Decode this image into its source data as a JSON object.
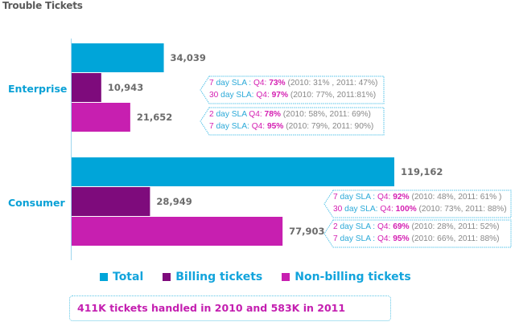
{
  "chart_data": {
    "type": "bar",
    "orientation": "horizontal",
    "title": "Trouble Tickets",
    "xlabel": "",
    "ylabel": "",
    "xlim": [
      0,
      119162
    ],
    "grid": false,
    "categories": [
      "Enterprise",
      "Consumer"
    ],
    "series": [
      {
        "name": "Total",
        "color": "#00a5d9",
        "values": [
          34039,
          119162
        ],
        "labels": [
          "34,039",
          "119,162"
        ]
      },
      {
        "name": "Billing tickets",
        "color": "#7e0b7c",
        "values": [
          10943,
          28949
        ],
        "labels": [
          "10,943",
          "28,949"
        ]
      },
      {
        "name": "Non-billing tickets",
        "color": "#c71fb0",
        "values": [
          21652,
          77903
        ],
        "labels": [
          "21,652",
          "77,903"
        ]
      }
    ],
    "legend": {
      "placement": "bottom"
    },
    "annotations": {
      "enterprise_billing": [
        {
          "sla": "7",
          "sla_rest": "day SLA :",
          "q4_label": "Q4:",
          "q4": "73%",
          "history": "(2010: 31% , 2011: 47%)"
        },
        {
          "sla": "30",
          "sla_rest": "day SLA:",
          "q4_label": "Q4:",
          "q4": "97%",
          "history": "(2010: 77%, 2011:81%)"
        }
      ],
      "enterprise_nonbilling": [
        {
          "sla": "2",
          "sla_rest": "day SLA",
          "q4_label": "Q4:",
          "q4": "78%",
          "history": "(2010: 58%, 2011: 69%)"
        },
        {
          "sla": "7",
          "sla_rest": "day SLA:",
          "q4_label": "Q4:",
          "q4": "95%",
          "history": "(2010: 79%, 2011:  90%)"
        }
      ],
      "consumer_billing": [
        {
          "sla": "7",
          "sla_rest": "day SLA :",
          "q4_label": "Q4:",
          "q4": "92%",
          "history": "(2010: 48%, 2011: 61% )"
        },
        {
          "sla": "30",
          "sla_rest": "day SLA:",
          "q4_label": "Q4:",
          "q4": "100%",
          "history": "(2010: 73%, 2011: 88%)"
        }
      ],
      "consumer_nonbilling": [
        {
          "sla": "2",
          "sla_rest": "day SLA :",
          "q4_label": "Q4:",
          "q4": "69%",
          "history": "(2010: 28%, 2011: 52%)"
        },
        {
          "sla": "7",
          "sla_rest": "day SLA :",
          "q4_label": "Q4:",
          "q4": "95%",
          "history": "(2010: 66%, 2011: 88%)"
        }
      ]
    },
    "footer_note": "411K tickets handled in 2010 and 583K in 2011"
  },
  "colors": {
    "accent_cyan": "#00a5d9",
    "accent_magenta": "#c71fb0",
    "accent_purple": "#7e0b7c",
    "value_gray": "#6b6b6b"
  }
}
